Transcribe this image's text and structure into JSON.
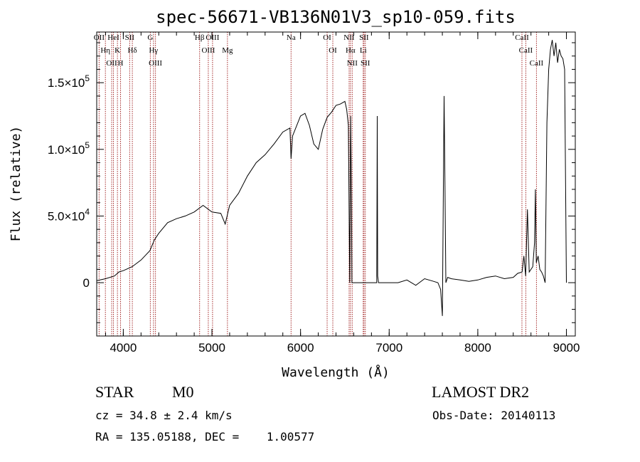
{
  "chart_data": {
    "type": "line",
    "title": "spec-56671-VB136N01V3_sp10-059.fits",
    "xlabel": "Wavelength (Å)",
    "ylabel": "Flux (relative)",
    "xlim": [
      3700,
      9100
    ],
    "ylim": [
      -40000,
      188000
    ],
    "x_ticks": [
      {
        "value": 4000,
        "label": "4000"
      },
      {
        "value": 5000,
        "label": "5000"
      },
      {
        "value": 6000,
        "label": "6000"
      },
      {
        "value": 7000,
        "label": "7000"
      },
      {
        "value": 8000,
        "label": "8000"
      },
      {
        "value": 9000,
        "label": "9000"
      }
    ],
    "y_ticks": [
      {
        "value": 0,
        "label": "0"
      },
      {
        "value": 50000,
        "label": "5.0×10",
        "exp": "4"
      },
      {
        "value": 100000,
        "label": "1.0×10",
        "exp": "5"
      },
      {
        "value": 150000,
        "label": "1.5×10",
        "exp": "5"
      }
    ],
    "series": [
      {
        "x": [
          3700,
          3800,
          3900,
          3950,
          4000,
          4100,
          4200,
          4300,
          4350,
          4400,
          4500,
          4600,
          4700,
          4800,
          4900,
          5000,
          5100,
          5150,
          5200,
          5300,
          5400,
          5500,
          5600,
          5700,
          5800,
          5880,
          5893,
          5910,
          6000,
          6050,
          6100,
          6150,
          6200,
          6250,
          6300,
          6350,
          6400,
          6450,
          6500,
          6520,
          6540,
          6555,
          6565,
          6575,
          6580,
          6590,
          6600,
          6700,
          6800,
          6860,
          6865,
          6870,
          6880,
          6900,
          7000,
          7100,
          7200,
          7300,
          7400,
          7500,
          7550,
          7580,
          7600,
          7620,
          7630,
          7640,
          7660,
          7700,
          7800,
          7900,
          8000,
          8100,
          8200,
          8300,
          8400,
          8450,
          8500,
          8520,
          8540,
          8560,
          8580,
          8600,
          8620,
          8640,
          8650,
          8660,
          8680,
          8700,
          8720,
          8740,
          8760,
          8780,
          8800,
          8820,
          8840,
          8860,
          8880,
          8900,
          8920,
          8940,
          8960,
          8980,
          9000
        ],
        "y": [
          1500,
          3000,
          5000,
          8000,
          9000,
          12000,
          17000,
          24000,
          32000,
          37000,
          45000,
          48000,
          50000,
          53000,
          58000,
          53000,
          52000,
          44000,
          58000,
          67000,
          80000,
          90000,
          96000,
          104000,
          113000,
          116000,
          93000,
          110000,
          125000,
          127000,
          118000,
          104000,
          100000,
          115000,
          124000,
          128000,
          133000,
          134000,
          136000,
          130000,
          118000,
          0,
          125000,
          60000,
          0,
          0,
          0,
          0,
          0,
          0,
          125000,
          5000,
          0,
          0,
          0,
          0,
          2000,
          -2000,
          3000,
          1000,
          0,
          -5000,
          -25000,
          140000,
          70000,
          0,
          4000,
          3000,
          2000,
          1000,
          2000,
          4000,
          5000,
          3000,
          4000,
          7000,
          8000,
          20000,
          5000,
          55000,
          8000,
          10000,
          12000,
          30000,
          70000,
          15000,
          20000,
          10000,
          8000,
          5000,
          0,
          120000,
          160000,
          175000,
          182000,
          170000,
          180000,
          165000,
          175000,
          170000,
          168000,
          160000,
          0
        ]
      }
    ],
    "lines": [
      {
        "x": 3727,
        "lab": "OII"
      },
      {
        "x": 3798,
        "lab": "Hη"
      },
      {
        "x": 3869,
        "lab": "OII"
      },
      {
        "x": 3889,
        "lab": "HeI"
      },
      {
        "x": 3934,
        "lab": "K"
      },
      {
        "x": 3969,
        "lab": "H"
      },
      {
        "x": 4072,
        "lab": "SII"
      },
      {
        "x": 4102,
        "lab": "Hδ"
      },
      {
        "x": 4305,
        "lab": "G"
      },
      {
        "x": 4341,
        "lab": "Hγ"
      },
      {
        "x": 4363,
        "lab": "OIII"
      },
      {
        "x": 4861,
        "lab": "Hβ"
      },
      {
        "x": 4959,
        "lab": "OIII"
      },
      {
        "x": 5007,
        "lab": "OIII"
      },
      {
        "x": 5175,
        "lab": "Mg"
      },
      {
        "x": 5893,
        "lab": "Na"
      },
      {
        "x": 6300,
        "lab": "OI"
      },
      {
        "x": 6364,
        "lab": "OI"
      },
      {
        "x": 6548,
        "lab": "NII"
      },
      {
        "x": 6563,
        "lab": "Hα"
      },
      {
        "x": 6583,
        "lab": "NII"
      },
      {
        "x": 6707,
        "lab": "Li"
      },
      {
        "x": 6716,
        "lab": "SII"
      },
      {
        "x": 6731,
        "lab": "SII"
      },
      {
        "x": 8498,
        "lab": "CaII"
      },
      {
        "x": 8542,
        "lab": "CaII"
      },
      {
        "x": 8662,
        "lab": "CaII"
      }
    ],
    "line_color": "#000000",
    "marker_color": "#a52a2a",
    "legend": "none",
    "grid": false
  },
  "info": {
    "object_class": "STAR",
    "subclass": "M0",
    "survey": "LAMOST DR2",
    "cz": "cz = 34.8 ± 2.4 km/s",
    "obs_date": "Obs-Date: 20140113",
    "coords": "RA = 135.05188, DEC =    1.00577"
  }
}
